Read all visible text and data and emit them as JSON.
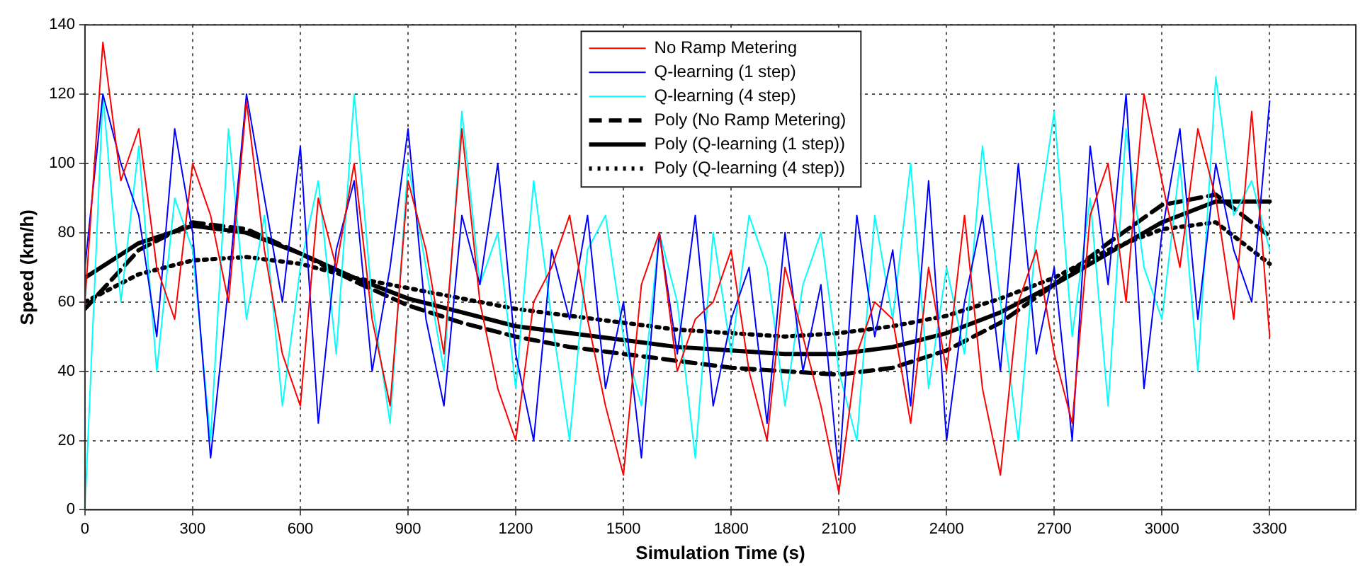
{
  "chart_data": {
    "type": "line",
    "xlabel": "Simulation Time (s)",
    "ylabel": "Speed (km/h)",
    "x": [
      0,
      50,
      100,
      150,
      200,
      250,
      300,
      350,
      400,
      450,
      500,
      550,
      600,
      650,
      700,
      750,
      800,
      850,
      900,
      950,
      1000,
      1050,
      1100,
      1150,
      1200,
      1250,
      1300,
      1350,
      1400,
      1450,
      1500,
      1550,
      1600,
      1650,
      1700,
      1750,
      1800,
      1850,
      1900,
      1950,
      2000,
      2050,
      2100,
      2150,
      2200,
      2250,
      2300,
      2350,
      2400,
      2450,
      2500,
      2550,
      2600,
      2650,
      2700,
      2750,
      2800,
      2850,
      2900,
      2950,
      3000,
      3050,
      3100,
      3150,
      3200,
      3250,
      3300
    ],
    "xlim": [
      0,
      3540
    ],
    "xticks": [
      0,
      300,
      600,
      900,
      1200,
      1500,
      1800,
      2100,
      2400,
      2700,
      3000,
      3300
    ],
    "ylim": [
      0,
      140
    ],
    "yticks": [
      0,
      20,
      40,
      60,
      80,
      100,
      120,
      140
    ],
    "grid": true,
    "legend": "top",
    "marker": "none",
    "series": [
      {
        "name": "No Ramp Metering",
        "color": "#ff0000",
        "values": [
          60,
          135,
          95,
          110,
          70,
          55,
          100,
          85,
          60,
          118,
          75,
          45,
          30,
          90,
          70,
          100,
          55,
          30,
          95,
          75,
          45,
          110,
          60,
          35,
          20,
          60,
          70,
          85,
          55,
          30,
          10,
          65,
          80,
          40,
          55,
          60,
          75,
          40,
          20,
          70,
          50,
          30,
          5,
          45,
          60,
          55,
          25,
          70,
          40,
          85,
          35,
          10,
          60,
          75,
          45,
          25,
          85,
          100,
          60,
          120,
          95,
          70,
          110,
          90,
          55,
          115,
          50
        ]
      },
      {
        "name": "Q-learning (1 step)",
        "color": "#0000ff",
        "values": [
          70,
          120,
          100,
          85,
          50,
          110,
          80,
          15,
          65,
          120,
          90,
          60,
          105,
          25,
          75,
          95,
          40,
          70,
          110,
          55,
          30,
          85,
          65,
          100,
          45,
          20,
          75,
          55,
          85,
          35,
          60,
          15,
          80,
          45,
          85,
          30,
          55,
          70,
          25,
          80,
          40,
          65,
          10,
          85,
          50,
          75,
          30,
          95,
          20,
          60,
          85,
          40,
          100,
          45,
          70,
          20,
          105,
          65,
          120,
          35,
          80,
          110,
          55,
          100,
          75,
          60,
          118
        ]
      },
      {
        "name": "Q-learning (4 step)",
        "color": "#00ffff",
        "values": [
          0,
          120,
          60,
          105,
          40,
          90,
          75,
          20,
          110,
          55,
          85,
          30,
          70,
          95,
          45,
          120,
          60,
          25,
          100,
          70,
          40,
          115,
          65,
          80,
          35,
          95,
          55,
          20,
          75,
          85,
          50,
          30,
          80,
          60,
          15,
          80,
          45,
          85,
          70,
          30,
          65,
          80,
          40,
          20,
          85,
          55,
          100,
          35,
          70,
          45,
          105,
          60,
          20,
          80,
          115,
          50,
          90,
          30,
          110,
          70,
          55,
          100,
          40,
          125,
          85,
          95,
          75
        ]
      },
      {
        "name": "Poly (No Ramp Metering)",
        "color": "#000000",
        "line_style": "dashed",
        "x": [
          0,
          150,
          300,
          450,
          600,
          750,
          900,
          1050,
          1200,
          1350,
          1500,
          1650,
          1800,
          1950,
          2100,
          2250,
          2400,
          2550,
          2700,
          2850,
          3000,
          3150,
          3300
        ],
        "values": [
          58,
          75,
          83,
          81,
          74,
          66,
          59,
          54,
          50,
          47,
          45,
          43,
          41,
          40,
          39,
          41,
          46,
          54,
          65,
          77,
          88,
          91,
          79
        ]
      },
      {
        "name": "Poly (Q-learning (1 step))",
        "color": "#000000",
        "line_style": "solid",
        "x": [
          0,
          150,
          300,
          450,
          600,
          750,
          900,
          1050,
          1200,
          1350,
          1500,
          1650,
          1800,
          1950,
          2100,
          2250,
          2400,
          2550,
          2700,
          2850,
          3000,
          3150,
          3300
        ],
        "values": [
          67,
          77,
          82,
          80,
          74,
          67,
          61,
          57,
          53,
          51,
          49,
          47,
          46,
          45,
          45,
          47,
          51,
          57,
          65,
          74,
          83,
          89,
          89
        ]
      },
      {
        "name": "Poly (Q-learning (4 step))",
        "color": "#000000",
        "line_style": "dotted",
        "x": [
          0,
          150,
          300,
          450,
          600,
          750,
          900,
          1050,
          1200,
          1350,
          1500,
          1650,
          1800,
          1950,
          2100,
          2250,
          2400,
          2550,
          2700,
          2850,
          3000,
          3150,
          3300
        ],
        "values": [
          60,
          68,
          72,
          73,
          71,
          67,
          64,
          61,
          58,
          56,
          54,
          52,
          51,
          50,
          51,
          53,
          56,
          61,
          67,
          75,
          81,
          83,
          71
        ]
      }
    ]
  }
}
